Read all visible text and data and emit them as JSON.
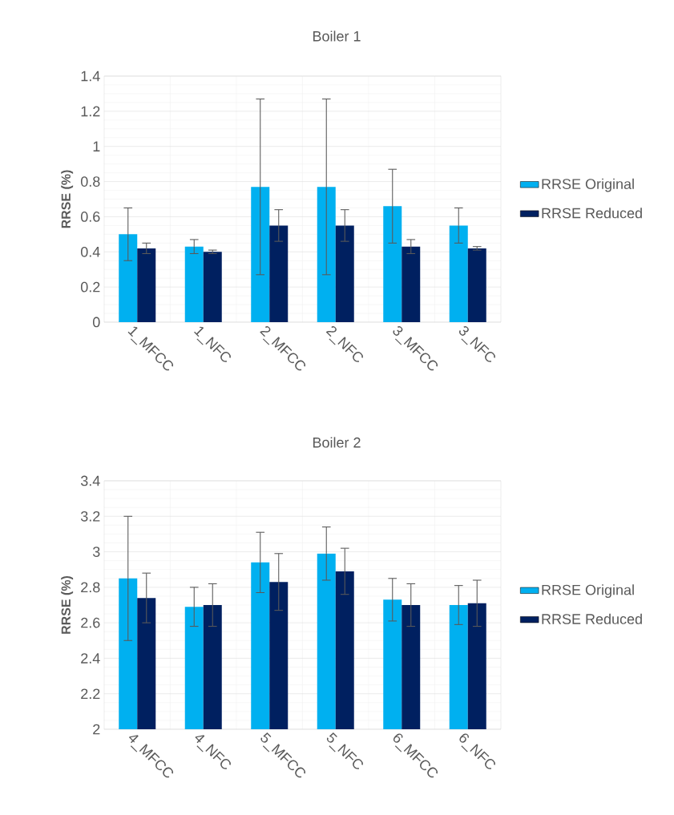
{
  "chart_data": [
    {
      "type": "bar",
      "title": "Boiler 1",
      "ylabel": "RRSE (%)",
      "categories": [
        "1_MFCC",
        "1_NFC",
        "2_MFCC",
        "2_NFC",
        "3_MFCC",
        "3_NFC"
      ],
      "series": [
        {
          "name": "RRSE Original",
          "color": "#00b0f0",
          "values": [
            0.5,
            0.43,
            0.77,
            0.77,
            0.66,
            0.55
          ],
          "errors": [
            0.15,
            0.04,
            0.5,
            0.5,
            0.21,
            0.1
          ]
        },
        {
          "name": "RRSE Reduced",
          "color": "#002060",
          "values": [
            0.42,
            0.4,
            0.55,
            0.55,
            0.43,
            0.42
          ],
          "errors": [
            0.03,
            0.01,
            0.09,
            0.09,
            0.04,
            0.01
          ]
        }
      ],
      "ylim": [
        0,
        1.4
      ],
      "yticks": [
        0,
        0.2,
        0.4,
        0.6,
        0.8,
        1,
        1.2,
        1.4
      ],
      "grid": true,
      "legend": "right"
    },
    {
      "type": "bar",
      "title": "Boiler 2",
      "ylabel": "RRSE (%)",
      "categories": [
        "4_MFCC",
        "4_NFC",
        "5_MFCC",
        "5_NFC",
        "6_MFCC",
        "6_NFC"
      ],
      "series": [
        {
          "name": "RRSE Original",
          "color": "#00b0f0",
          "values": [
            2.85,
            2.69,
            2.94,
            2.99,
            2.73,
            2.7
          ],
          "errors": [
            0.35,
            0.11,
            0.17,
            0.15,
            0.12,
            0.11
          ]
        },
        {
          "name": "RRSE Reduced",
          "color": "#002060",
          "values": [
            2.74,
            2.7,
            2.83,
            2.89,
            2.7,
            2.71
          ],
          "errors": [
            0.14,
            0.12,
            0.16,
            0.13,
            0.12,
            0.13
          ]
        }
      ],
      "ylim": [
        2,
        3.4
      ],
      "yticks": [
        2,
        2.2,
        2.4,
        2.6,
        2.8,
        3,
        3.2,
        3.4
      ],
      "grid": true,
      "legend": "right"
    }
  ]
}
